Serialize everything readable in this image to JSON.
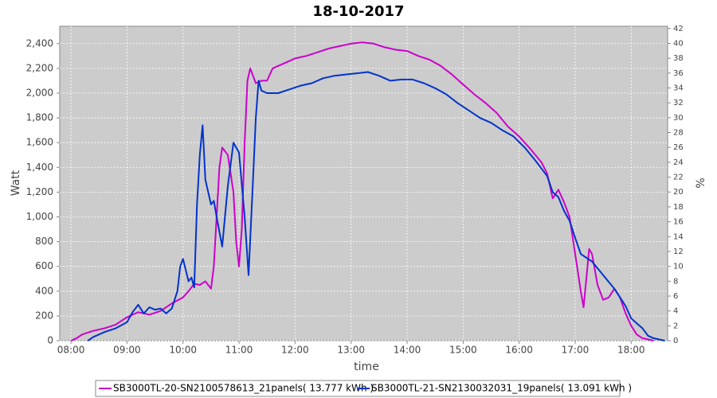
{
  "chart_data": {
    "type": "line",
    "title": "18-10-2017",
    "x_label": "time",
    "y_label": "Watt",
    "y2_label": "%",
    "xlim": [
      7.8,
      18.65
    ],
    "xticks": [
      {
        "value": 8,
        "label": "08:00"
      },
      {
        "value": 9,
        "label": "09:00"
      },
      {
        "value": 10,
        "label": "10:00"
      },
      {
        "value": 11,
        "label": "11:00"
      },
      {
        "value": 12,
        "label": "12:00"
      },
      {
        "value": 13,
        "label": "13:00"
      },
      {
        "value": 14,
        "label": "14:00"
      },
      {
        "value": 15,
        "label": "15:00"
      },
      {
        "value": 16,
        "label": "16:00"
      },
      {
        "value": 17,
        "label": "17:00"
      },
      {
        "value": 18,
        "label": "18:00"
      }
    ],
    "ylim": [
      0,
      2540
    ],
    "yticks": [
      0,
      200,
      400,
      600,
      800,
      {
        "value": 1000,
        "label": "1,000"
      },
      {
        "value": 1200,
        "label": "1,200"
      },
      {
        "value": 1400,
        "label": "1,400"
      },
      {
        "value": 1600,
        "label": "1,600"
      },
      {
        "value": 1800,
        "label": "1,800"
      },
      {
        "value": 2000,
        "label": "2,000"
      },
      {
        "value": 2200,
        "label": "2,200"
      },
      {
        "value": 2400,
        "label": "2,400"
      }
    ],
    "y2lim": [
      0,
      42.3
    ],
    "y2ticks": [
      0,
      2,
      4,
      6,
      8,
      10,
      12,
      14,
      16,
      18,
      20,
      22,
      24,
      26,
      28,
      30,
      32,
      34,
      36,
      38,
      40,
      42
    ],
    "grid": true,
    "legend": "bottom",
    "series": [
      {
        "name": "SB3000TL-20-SN2100578613_21panels( 13.777 kWh )",
        "color": "#cc00cc",
        "x": [
          8.0,
          8.1,
          8.2,
          8.4,
          8.6,
          8.8,
          9.0,
          9.2,
          9.4,
          9.6,
          9.8,
          10.0,
          10.1,
          10.2,
          10.3,
          10.4,
          10.5,
          10.55,
          10.65,
          10.7,
          10.8,
          10.9,
          10.95,
          11.0,
          11.05,
          11.1,
          11.15,
          11.2,
          11.3,
          11.4,
          11.5,
          11.6,
          11.8,
          12.0,
          12.2,
          12.4,
          12.6,
          12.8,
          13.0,
          13.2,
          13.4,
          13.6,
          13.8,
          14.0,
          14.2,
          14.4,
          14.6,
          14.8,
          15.0,
          15.2,
          15.4,
          15.6,
          15.8,
          16.0,
          16.2,
          16.4,
          16.5,
          16.6,
          16.7,
          16.8,
          16.9,
          17.0,
          17.1,
          17.15,
          17.2,
          17.25,
          17.3,
          17.4,
          17.5,
          17.6,
          17.7,
          17.8,
          17.9,
          18.0,
          18.1,
          18.2,
          18.3,
          18.4
        ],
        "values": [
          0,
          20,
          50,
          80,
          100,
          130,
          190,
          230,
          210,
          240,
          300,
          350,
          400,
          460,
          450,
          480,
          420,
          600,
          1400,
          1560,
          1500,
          1200,
          800,
          600,
          900,
          1600,
          2100,
          2200,
          2080,
          2100,
          2100,
          2200,
          2240,
          2280,
          2300,
          2330,
          2360,
          2380,
          2400,
          2410,
          2400,
          2370,
          2350,
          2340,
          2300,
          2270,
          2220,
          2150,
          2070,
          1990,
          1920,
          1840,
          1730,
          1650,
          1550,
          1440,
          1350,
          1150,
          1220,
          1120,
          1000,
          700,
          400,
          270,
          500,
          740,
          700,
          450,
          330,
          350,
          420,
          350,
          220,
          120,
          50,
          20,
          10,
          0
        ]
      },
      {
        "name": "SB3000TL-21-SN2130032031_19panels( 13.091 kWh )",
        "color": "#0033cc",
        "x": [
          8.3,
          8.4,
          8.6,
          8.8,
          9.0,
          9.1,
          9.2,
          9.3,
          9.4,
          9.5,
          9.6,
          9.7,
          9.8,
          9.9,
          9.95,
          10.0,
          10.1,
          10.15,
          10.2,
          10.25,
          10.3,
          10.35,
          10.4,
          10.5,
          10.55,
          10.6,
          10.7,
          10.8,
          10.9,
          11.0,
          11.1,
          11.17,
          11.25,
          11.3,
          11.35,
          11.4,
          11.5,
          11.7,
          11.9,
          12.1,
          12.3,
          12.5,
          12.7,
          12.9,
          13.1,
          13.3,
          13.5,
          13.7,
          13.9,
          14.1,
          14.3,
          14.5,
          14.7,
          14.9,
          15.1,
          15.3,
          15.5,
          15.7,
          15.9,
          16.1,
          16.3,
          16.5,
          16.6,
          16.7,
          16.8,
          16.9,
          17.0,
          17.1,
          17.3,
          17.5,
          17.7,
          17.9,
          18.0,
          18.1,
          18.2,
          18.3,
          18.4,
          18.6
        ],
        "values": [
          0,
          30,
          70,
          100,
          150,
          230,
          290,
          220,
          270,
          250,
          260,
          220,
          260,
          400,
          600,
          660,
          480,
          510,
          430,
          1100,
          1500,
          1740,
          1300,
          1100,
          1130,
          1000,
          760,
          1250,
          1600,
          1520,
          1000,
          530,
          1300,
          1800,
          2100,
          2020,
          2000,
          2000,
          2030,
          2060,
          2080,
          2120,
          2140,
          2150,
          2160,
          2170,
          2140,
          2100,
          2110,
          2110,
          2080,
          2040,
          1990,
          1920,
          1860,
          1800,
          1760,
          1700,
          1650,
          1560,
          1450,
          1330,
          1200,
          1160,
          1050,
          970,
          830,
          700,
          640,
          530,
          420,
          280,
          180,
          140,
          100,
          40,
          20,
          0
        ]
      }
    ]
  }
}
